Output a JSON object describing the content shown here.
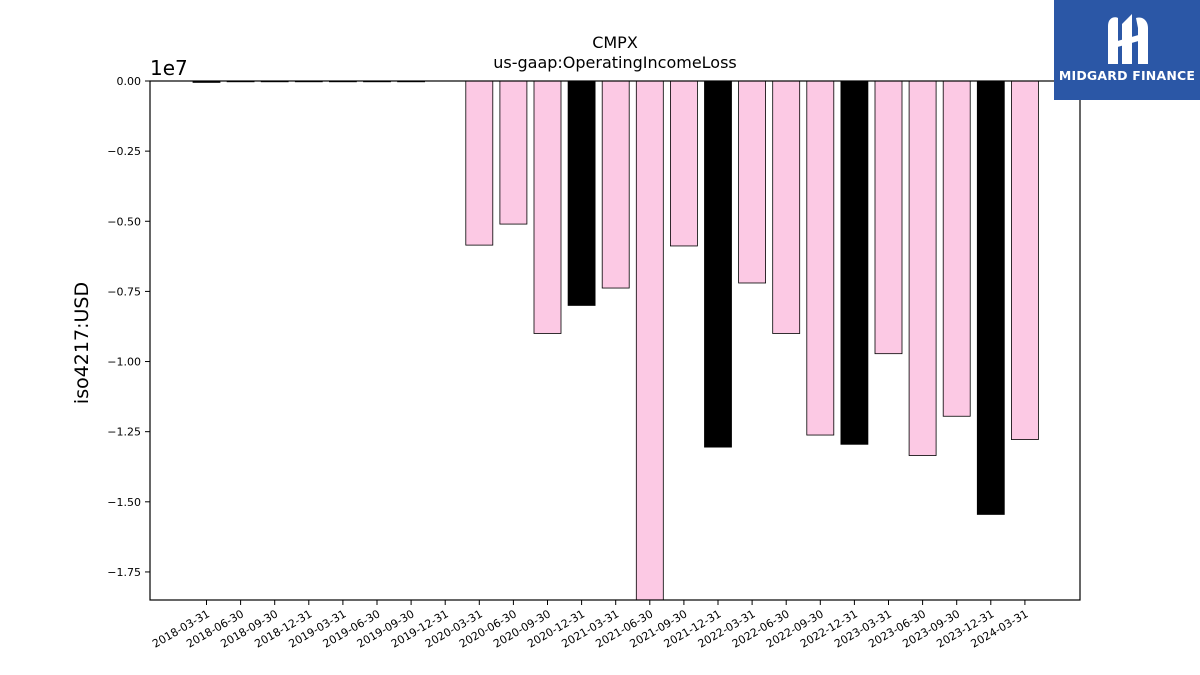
{
  "brand": {
    "name": "MIDGARD FINANCE",
    "bg_color": "#2b57a6"
  },
  "chart_data": {
    "type": "bar",
    "title": "CMPX",
    "subtitle": "us-gaap:OperatingIncomeLoss",
    "xlabel": "",
    "ylabel": "iso4217:USD",
    "scale_note": "1e7",
    "ylim": [
      -18500000,
      0
    ],
    "yticks": [
      0,
      -2500000,
      -5000000,
      -7500000,
      -10000000,
      -12500000,
      -15000000,
      -17500000
    ],
    "ytick_labels": [
      "0.00",
      "−0.25",
      "−0.50",
      "−0.75",
      "−1.00",
      "−1.25",
      "−1.50",
      "−1.75"
    ],
    "grid": false,
    "colors": {
      "quarter": "#fcc9e4",
      "year_end": "#000000",
      "edge": "#000000"
    },
    "categories": [
      "2018-03-31",
      "2018-06-30",
      "2018-09-30",
      "2018-12-31",
      "2019-03-31",
      "2019-06-30",
      "2019-09-30",
      "2019-12-31",
      "2020-03-31",
      "2020-06-30",
      "2020-09-30",
      "2020-12-31",
      "2021-03-31",
      "2021-06-30",
      "2021-09-30",
      "2021-12-31",
      "2022-03-31",
      "2022-06-30",
      "2022-09-30",
      "2022-12-31",
      "2023-03-31",
      "2023-06-30",
      "2023-09-30",
      "2023-12-31",
      "2024-03-31"
    ],
    "values": [
      -50000,
      -20000,
      -20000,
      -20000,
      -20000,
      -20000,
      -20000,
      null,
      -5850000,
      -5100000,
      -9000000,
      -8000000,
      -7380000,
      -18500000,
      -5880000,
      -13050000,
      -7200000,
      -9000000,
      -12620000,
      -12950000,
      -9720000,
      -13350000,
      -11950000,
      -15450000,
      -12780000
    ],
    "bar_colors": [
      "year_end",
      "quarter",
      "quarter",
      "year_end",
      "quarter",
      "quarter",
      "quarter",
      "year_end",
      "quarter",
      "quarter",
      "quarter",
      "year_end",
      "quarter",
      "quarter",
      "quarter",
      "year_end",
      "quarter",
      "quarter",
      "quarter",
      "year_end",
      "quarter",
      "quarter",
      "quarter",
      "year_end",
      "quarter"
    ]
  }
}
